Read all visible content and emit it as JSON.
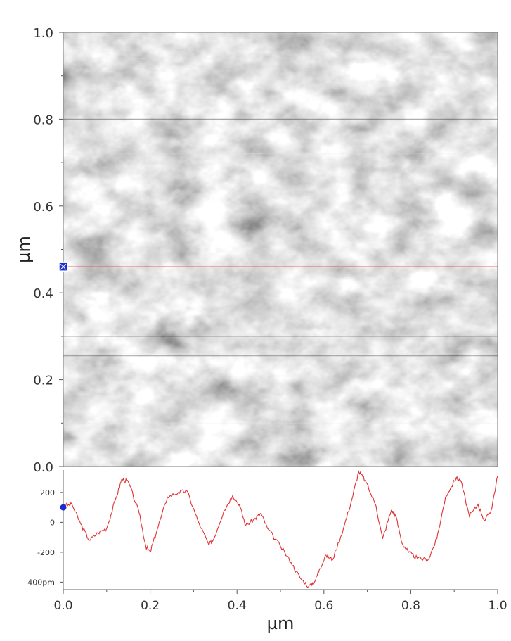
{
  "chart_data": [
    {
      "type": "heatmap",
      "description_of_content": "AFM height topography image (grayscale)",
      "xlim": [
        0.0,
        1.0
      ],
      "ylim": [
        0.0,
        1.0
      ],
      "y_tick_labels": [
        "0.0",
        "0.2",
        "0.4",
        "0.6",
        "0.8",
        "1.0"
      ],
      "ylabel": "µm",
      "colormap": "grayscale",
      "line_profile": {
        "y_um": 0.46,
        "line_color": "#e04040",
        "marker_color": "#1a2ccf"
      }
    },
    {
      "type": "line",
      "xlabel": "µm",
      "xlim": [
        0.0,
        1.0
      ],
      "ylim": [
        -450,
        350
      ],
      "x_tick_labels": [
        "0.0",
        "0.2",
        "0.4",
        "0.6",
        "0.8",
        "1.0"
      ],
      "y_ticks": [
        {
          "value": 200,
          "label": "200"
        },
        {
          "value": 0,
          "label": "0"
        },
        {
          "value": -200,
          "label": "-200"
        },
        {
          "value": -400,
          "label": "-400pm"
        }
      ],
      "series": [
        {
          "color": "#e03030",
          "x": [
            0.0,
            0.02,
            0.04,
            0.06,
            0.08,
            0.1,
            0.12,
            0.135,
            0.15,
            0.175,
            0.19,
            0.2,
            0.215,
            0.24,
            0.265,
            0.285,
            0.31,
            0.335,
            0.345,
            0.37,
            0.39,
            0.405,
            0.42,
            0.44,
            0.455,
            0.47,
            0.5,
            0.525,
            0.545,
            0.565,
            0.58,
            0.59,
            0.605,
            0.62,
            0.645,
            0.665,
            0.68,
            0.695,
            0.72,
            0.735,
            0.755,
            0.765,
            0.78,
            0.795,
            0.815,
            0.84,
            0.86,
            0.88,
            0.905,
            0.915,
            0.935,
            0.955,
            0.97,
            0.985,
            1.0
          ],
          "y": [
            110,
            120,
            -10,
            -120,
            -70,
            -40,
            150,
            290,
            270,
            60,
            -160,
            -200,
            -60,
            170,
            200,
            210,
            10,
            -150,
            -120,
            80,
            180,
            120,
            -20,
            20,
            60,
            -40,
            -160,
            -270,
            -370,
            -430,
            -390,
            -310,
            -220,
            -250,
            -40,
            160,
            340,
            280,
            110,
            -110,
            80,
            50,
            -140,
            -200,
            -240,
            -250,
            -110,
            170,
            300,
            280,
            40,
            120,
            10,
            80,
            310
          ]
        }
      ]
    }
  ]
}
